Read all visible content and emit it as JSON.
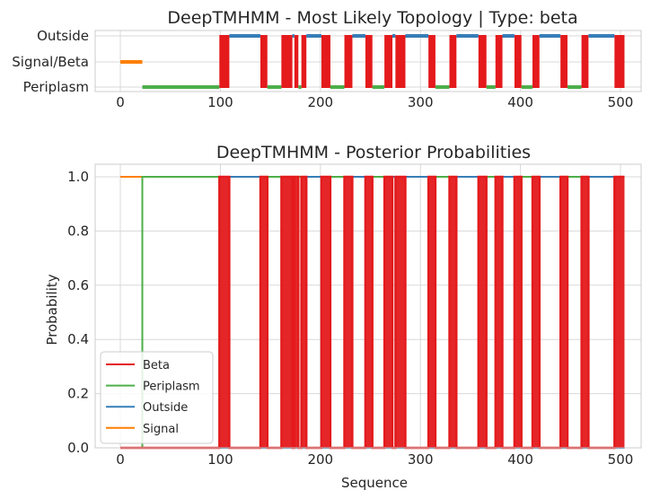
{
  "colors": {
    "beta": "#e41a1c",
    "periplasm": "#4daf4a",
    "outside": "#377eb8",
    "signal": "#ff7f00"
  },
  "chart_data": [
    {
      "type": "line",
      "title": "DeepTMHMM - Most Likely Topology | Type: beta",
      "xlabel": "",
      "ylabel": "",
      "xlim": [
        -12,
        516
      ],
      "xticks": [
        "0",
        "100",
        "200",
        "300",
        "400",
        "500"
      ],
      "xtick_values": [
        0,
        100,
        200,
        300,
        400,
        500
      ],
      "ycategories": [
        "Periplasm",
        "Signal/Beta",
        "Outside"
      ],
      "grid": true,
      "sequence_length": 504,
      "regions": [
        {
          "label": "Signal",
          "start": 0,
          "end": 22
        },
        {
          "label": "Periplasm",
          "start": 22,
          "end": 99
        },
        {
          "label": "Beta",
          "start": 99,
          "end": 109
        },
        {
          "label": "Outside",
          "start": 109,
          "end": 140
        },
        {
          "label": "Beta",
          "start": 140,
          "end": 147
        },
        {
          "label": "Periplasm",
          "start": 147,
          "end": 161
        },
        {
          "label": "Beta",
          "start": 161,
          "end": 172
        },
        {
          "label": "Outside",
          "start": 172,
          "end": 174
        },
        {
          "label": "Beta",
          "start": 174,
          "end": 178
        },
        {
          "label": "Periplasm",
          "start": 178,
          "end": 181
        },
        {
          "label": "Beta",
          "start": 181,
          "end": 186
        },
        {
          "label": "Outside",
          "start": 186,
          "end": 201
        },
        {
          "label": "Beta",
          "start": 201,
          "end": 210
        },
        {
          "label": "Periplasm",
          "start": 210,
          "end": 224
        },
        {
          "label": "Beta",
          "start": 224,
          "end": 232
        },
        {
          "label": "Outside",
          "start": 232,
          "end": 245
        },
        {
          "label": "Beta",
          "start": 245,
          "end": 252
        },
        {
          "label": "Periplasm",
          "start": 252,
          "end": 264
        },
        {
          "label": "Beta",
          "start": 264,
          "end": 272
        },
        {
          "label": "Outside",
          "start": 272,
          "end": 275
        },
        {
          "label": "Beta",
          "start": 275,
          "end": 285
        },
        {
          "label": "Outside",
          "start": 285,
          "end": 308
        },
        {
          "label": "Beta",
          "start": 308,
          "end": 315
        },
        {
          "label": "Periplasm",
          "start": 315,
          "end": 329
        },
        {
          "label": "Beta",
          "start": 329,
          "end": 336
        },
        {
          "label": "Outside",
          "start": 336,
          "end": 358
        },
        {
          "label": "Beta",
          "start": 358,
          "end": 366
        },
        {
          "label": "Periplasm",
          "start": 366,
          "end": 375
        },
        {
          "label": "Beta",
          "start": 375,
          "end": 382
        },
        {
          "label": "Outside",
          "start": 382,
          "end": 394
        },
        {
          "label": "Beta",
          "start": 394,
          "end": 401
        },
        {
          "label": "Periplasm",
          "start": 401,
          "end": 412
        },
        {
          "label": "Beta",
          "start": 412,
          "end": 419
        },
        {
          "label": "Outside",
          "start": 419,
          "end": 440
        },
        {
          "label": "Beta",
          "start": 440,
          "end": 447
        },
        {
          "label": "Periplasm",
          "start": 447,
          "end": 461
        },
        {
          "label": "Beta",
          "start": 461,
          "end": 468
        },
        {
          "label": "Outside",
          "start": 468,
          "end": 494
        },
        {
          "label": "Beta",
          "start": 494,
          "end": 504
        }
      ]
    },
    {
      "type": "line",
      "title": "DeepTMHMM - Posterior Probabilities",
      "xlabel": "Sequence",
      "ylabel": "Probability",
      "xlim": [
        -12,
        516
      ],
      "ylim": [
        0.0,
        1.03
      ],
      "xticks": [
        "0",
        "100",
        "200",
        "300",
        "400",
        "500"
      ],
      "xtick_values": [
        0,
        100,
        200,
        300,
        400,
        500
      ],
      "yticks": [
        "0.0",
        "0.2",
        "0.4",
        "0.6",
        "0.8",
        "1.0"
      ],
      "ytick_values": [
        0.0,
        0.2,
        0.4,
        0.6,
        0.8,
        1.0
      ],
      "grid": true,
      "legend": {
        "placement": "lower-left",
        "entries": [
          "Beta",
          "Periplasm",
          "Outside",
          "Signal"
        ]
      },
      "series": [
        {
          "name": "Beta",
          "note": "probability 1.0 within each Beta region of the topology, 0.0 elsewhere"
        },
        {
          "name": "Periplasm",
          "note": "probability 1.0 within each Periplasm region, 0.0 elsewhere"
        },
        {
          "name": "Outside",
          "note": "probability 1.0 within each Outside region, 0.0 elsewhere"
        },
        {
          "name": "Signal",
          "note": "probability 1.0 for positions 0-22, 0.0 elsewhere"
        }
      ]
    }
  ]
}
